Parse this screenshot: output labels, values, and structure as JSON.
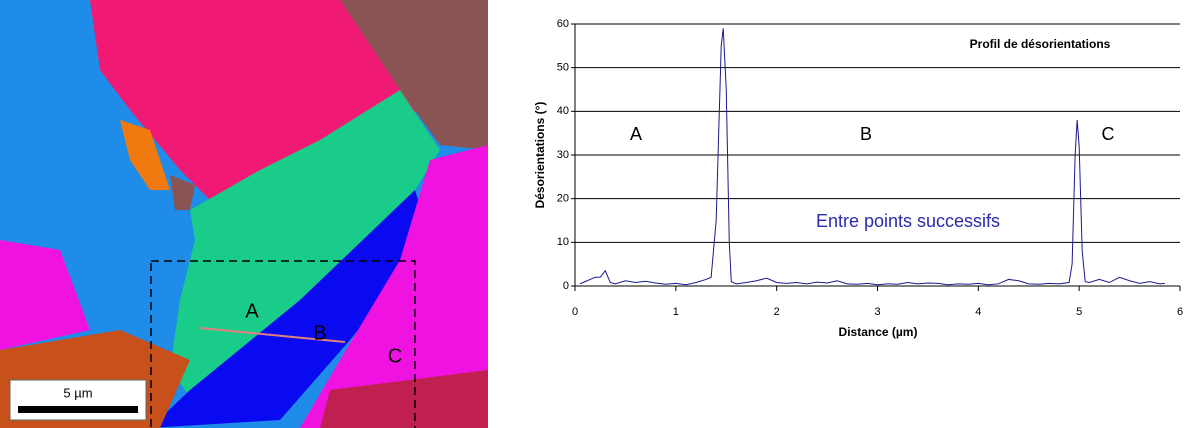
{
  "map": {
    "labels": [
      "A",
      "B",
      "C"
    ],
    "scale_bar": "5 µm"
  },
  "chart_data": {
    "type": "line",
    "title": "Profil de désorientations",
    "x_label": "Distance (µm)",
    "y_label": "Désorientations (°)",
    "annotations": [
      "A",
      "B",
      "C",
      "Entre points successifs"
    ],
    "x": [
      0.05,
      0.1,
      0.15,
      0.2,
      0.25,
      0.3,
      0.35,
      0.4,
      0.5,
      0.6,
      0.7,
      0.8,
      0.9,
      1.0,
      1.1,
      1.2,
      1.3,
      1.35,
      1.4,
      1.45,
      1.47,
      1.5,
      1.53,
      1.55,
      1.6,
      1.7,
      1.8,
      1.9,
      2.0,
      2.1,
      2.2,
      2.3,
      2.4,
      2.5,
      2.6,
      2.7,
      2.8,
      2.9,
      3.0,
      3.1,
      3.2,
      3.3,
      3.4,
      3.5,
      3.6,
      3.7,
      3.8,
      3.9,
      4.0,
      4.1,
      4.2,
      4.3,
      4.4,
      4.5,
      4.6,
      4.7,
      4.8,
      4.9,
      4.93,
      4.96,
      4.98,
      5.0,
      5.03,
      5.06,
      5.1,
      5.2,
      5.3,
      5.4,
      5.5,
      5.6,
      5.7,
      5.8,
      5.85
    ],
    "series": [
      {
        "name": "Entre points successifs",
        "color": "#1a1a8c",
        "values": [
          0.5,
          1,
          1.5,
          2,
          2,
          3.5,
          0.8,
          0.5,
          1.2,
          0.8,
          1.1,
          0.7,
          0.4,
          0.6,
          0.3,
          0.8,
          1.5,
          2,
          15,
          55,
          59,
          45,
          10,
          1,
          0.5,
          0.8,
          1.2,
          1.8,
          0.8,
          0.6,
          0.8,
          0.5,
          0.9,
          0.7,
          1.2,
          0.5,
          0.4,
          0.6,
          0.3,
          0.5,
          0.4,
          0.8,
          0.5,
          0.7,
          0.6,
          0.3,
          0.5,
          0.4,
          0.6,
          0.3,
          0.5,
          1.5,
          1.2,
          0.5,
          0.4,
          0.6,
          0.5,
          0.8,
          5,
          30,
          38,
          32,
          8,
          1,
          0.8,
          1.5,
          0.8,
          2,
          1.2,
          0.6,
          1,
          0.5,
          0.6
        ]
      }
    ],
    "xlim": [
      0,
      6
    ],
    "xticks": [
      0,
      1,
      2,
      3,
      4,
      5,
      6
    ],
    "ylim": [
      0,
      60
    ],
    "yticks": [
      0,
      10,
      20,
      30,
      40,
      50,
      60
    ],
    "grid": true
  }
}
